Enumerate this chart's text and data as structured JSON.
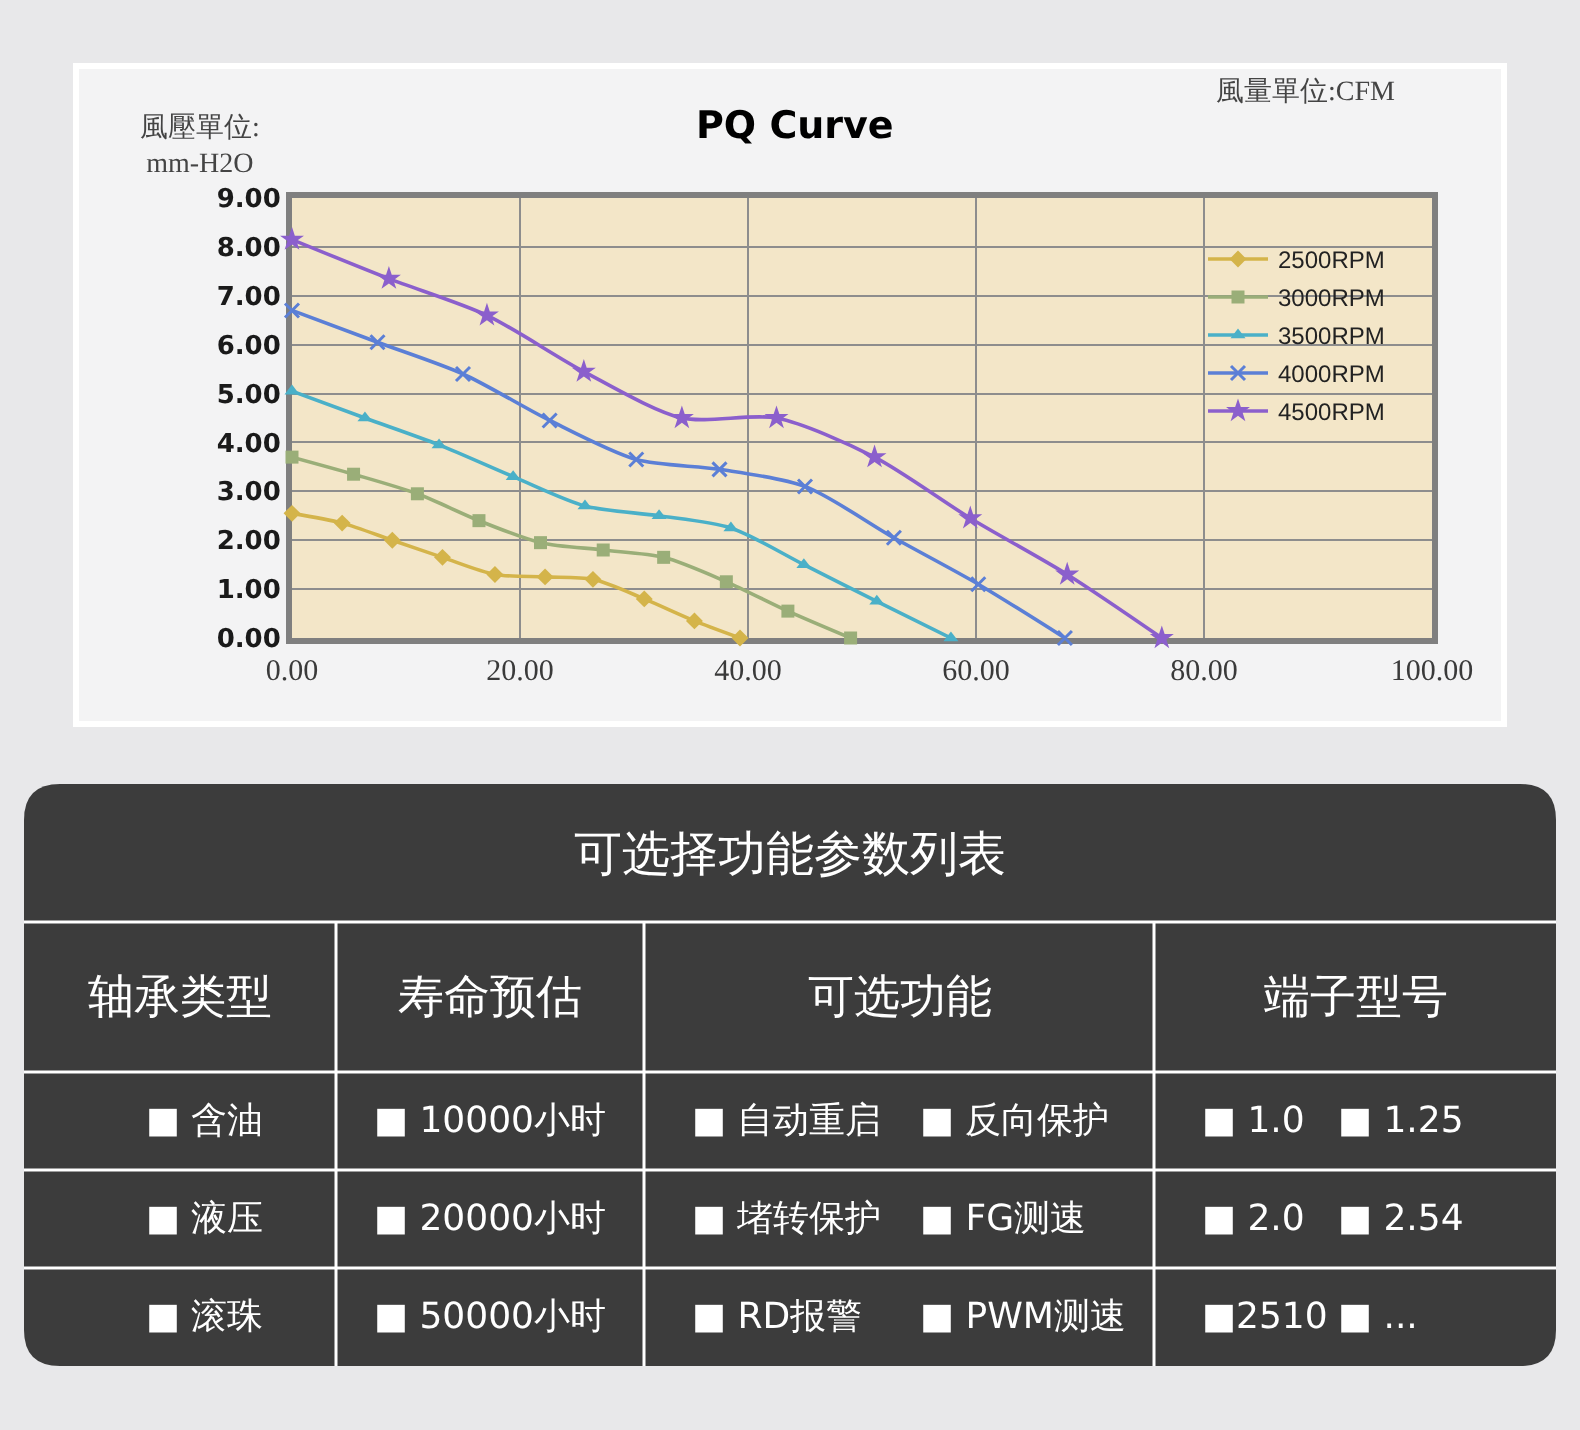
{
  "chart_data": [
    {
      "type": "line",
      "title": "PQ Curve",
      "xlabel": "風量單位:CFM",
      "ylabel": "風壓單位:\nmm-H2O",
      "xlim": [
        0,
        100
      ],
      "xticks": [
        {
          "value": 0,
          "label": "0.00"
        },
        {
          "value": 20,
          "label": "20.00"
        },
        {
          "value": 40,
          "label": "40.00"
        },
        {
          "value": 60,
          "label": "60.00"
        },
        {
          "value": 80,
          "label": "80.00"
        },
        {
          "value": 100,
          "label": "100.00"
        }
      ],
      "ylim": [
        0,
        9
      ],
      "yticks": [
        {
          "value": 0,
          "label": "0.00"
        },
        {
          "value": 1,
          "label": "1.00"
        },
        {
          "value": 2,
          "label": "2.00"
        },
        {
          "value": 3,
          "label": "3.00"
        },
        {
          "value": 4,
          "label": "4.00"
        },
        {
          "value": 5,
          "label": "5.00"
        },
        {
          "value": 6,
          "label": "6.00"
        },
        {
          "value": 7,
          "label": "7.00"
        },
        {
          "value": 8,
          "label": "8.00"
        },
        {
          "value": 9,
          "label": "9.00"
        }
      ],
      "grid": true,
      "legend": "top right",
      "series": [
        {
          "name": "2500RPM",
          "color": "#d4b44a",
          "marker": "diamond",
          "x": [
            0,
            4.4,
            8.8,
            13.2,
            17.8,
            22.2,
            26.4,
            30.9,
            35.3,
            39.3
          ],
          "values": [
            2.55,
            2.35,
            2.0,
            1.65,
            1.3,
            1.25,
            1.2,
            0.8,
            0.35,
            0
          ]
        },
        {
          "name": "3000RPM",
          "color": "#9aae78",
          "marker": "square",
          "x": [
            0,
            5.4,
            11.0,
            16.4,
            21.8,
            27.3,
            32.6,
            38.1,
            43.5,
            49.0
          ],
          "values": [
            3.7,
            3.35,
            2.95,
            2.4,
            1.95,
            1.8,
            1.65,
            1.15,
            0.55,
            0
          ]
        },
        {
          "name": "3500RPM",
          "color": "#4ab0c8",
          "marker": "triangle",
          "x": [
            0,
            6.4,
            12.9,
            19.4,
            25.7,
            32.2,
            38.5,
            44.9,
            51.3,
            57.8
          ],
          "values": [
            5.05,
            4.5,
            3.95,
            3.3,
            2.7,
            2.5,
            2.25,
            1.5,
            0.75,
            0
          ]
        },
        {
          "name": "4000RPM",
          "color": "#5b7fd6",
          "marker": "cross",
          "x": [
            0,
            7.5,
            15.0,
            22.6,
            30.2,
            37.5,
            45.0,
            52.8,
            60.2,
            67.8
          ],
          "values": [
            6.7,
            6.05,
            5.4,
            4.45,
            3.65,
            3.45,
            3.1,
            2.05,
            1.1,
            0
          ]
        },
        {
          "name": "4500RPM",
          "color": "#8b5fcc",
          "marker": "star",
          "x": [
            0,
            8.5,
            17.1,
            25.6,
            34.2,
            42.5,
            51.1,
            59.5,
            68.0,
            76.3
          ],
          "values": [
            8.15,
            7.35,
            6.6,
            5.45,
            4.5,
            4.5,
            3.7,
            2.45,
            1.3,
            0
          ]
        }
      ]
    },
    {
      "type": "other",
      "title": "可选择功能参数列表",
      "categories": [
        "轴承类型",
        "寿命预估",
        "可选功能",
        "端子型号"
      ],
      "cell_labels": [
        [
          [
            "■ 含油"
          ],
          [
            "■ 10000小时"
          ],
          [
            "■ 自动重启",
            "■ 反向保护"
          ],
          [
            "■ 1.0",
            "■ 1.25"
          ]
        ],
        [
          [
            "■ 液压"
          ],
          [
            "■ 20000小时"
          ],
          [
            "■ 堵转保护",
            "■ FG测速"
          ],
          [
            "■ 2.0",
            "■ 2.54"
          ]
        ],
        [
          [
            "■ 滚珠"
          ],
          [
            "■ 50000小时"
          ],
          [
            "■ RD报警",
            "■ PWM测速"
          ],
          [
            "■2510",
            "■ ..."
          ]
        ]
      ]
    }
  ]
}
